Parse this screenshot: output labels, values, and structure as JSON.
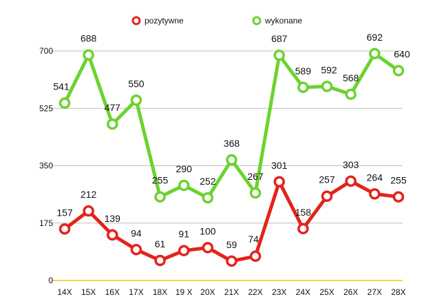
{
  "chart_data": {
    "type": "line",
    "title": "",
    "xlabel": "",
    "ylabel": "",
    "categories": [
      "14X",
      "15X",
      "16X",
      "17X",
      "18X",
      "19 X",
      "20X",
      "21X",
      "22X",
      "23X",
      "24X",
      "25X",
      "26X",
      "27X",
      "28X"
    ],
    "ylim": [
      0,
      700
    ],
    "yticks": [
      0,
      175,
      350,
      525,
      700
    ],
    "grid": true,
    "legend_position": "top",
    "series": [
      {
        "name": "pozytywne",
        "color": "#e3231b",
        "values": [
          157,
          212,
          139,
          94,
          61,
          91,
          100,
          59,
          74,
          301,
          158,
          257,
          303,
          264,
          255
        ],
        "labels": [
          "157",
          "212",
          "139",
          "94",
          "61",
          "91",
          "100",
          "59",
          "74",
          "301",
          "158",
          "257",
          "303",
          "264",
          "255"
        ]
      },
      {
        "name": "wykonane",
        "color": "#6bd32e",
        "values": [
          541,
          688,
          477,
          550,
          255,
          290,
          252,
          368,
          267,
          687,
          589,
          592,
          568,
          692,
          640
        ],
        "labels": [
          "541",
          "688",
          "477",
          "550",
          "255",
          "290",
          "252",
          "368",
          "267",
          "687",
          "589",
          "592",
          "568",
          "692",
          "640"
        ]
      }
    ]
  }
}
